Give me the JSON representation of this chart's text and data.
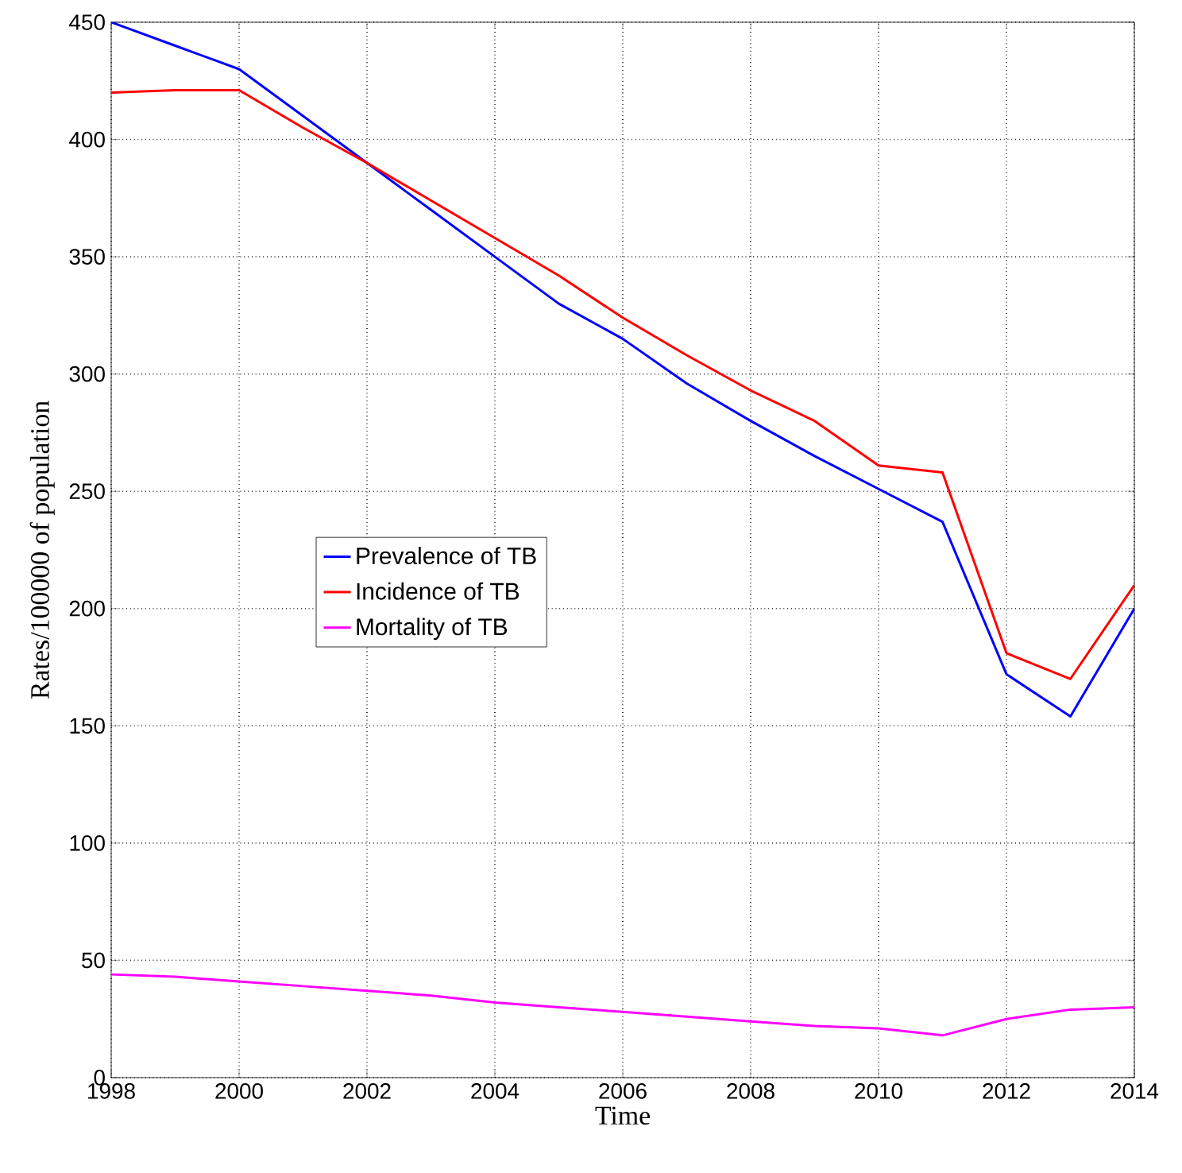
{
  "chart_data": {
    "type": "line",
    "xlabel": "Time",
    "ylabel": "Rates/100000 of population",
    "x": [
      1998,
      1999,
      2000,
      2001,
      2002,
      2003,
      2004,
      2005,
      2006,
      2007,
      2008,
      2009,
      2010,
      2011,
      2012,
      2013,
      2014
    ],
    "series": [
      {
        "name": "Prevalence of TB",
        "color": "#0000ff",
        "values": [
          450,
          440,
          430,
          410,
          390,
          370,
          350,
          330,
          315,
          296,
          280,
          265,
          251,
          237,
          172,
          154,
          200
        ]
      },
      {
        "name": "Incidence of TB",
        "color": "#ff0000",
        "values": [
          420,
          421,
          421,
          405,
          390,
          374,
          358,
          342,
          324,
          308,
          293,
          280,
          261,
          258,
          181,
          170,
          210
        ]
      },
      {
        "name": "Mortality of TB",
        "color": "#ff00ff",
        "values": [
          44,
          43,
          41,
          39,
          37,
          35,
          32,
          30,
          28,
          26,
          24,
          22,
          21,
          18,
          25,
          29,
          30
        ]
      }
    ],
    "xlim": [
      1998,
      2014
    ],
    "xticks": [
      1998,
      2000,
      2002,
      2004,
      2006,
      2008,
      2010,
      2012,
      2014
    ],
    "ylim": [
      0,
      450
    ],
    "yticks": [
      0,
      50,
      100,
      150,
      200,
      250,
      300,
      350,
      400,
      450
    ],
    "grid": true,
    "legend": "left",
    "marker": "none",
    "line_style": "solid"
  }
}
